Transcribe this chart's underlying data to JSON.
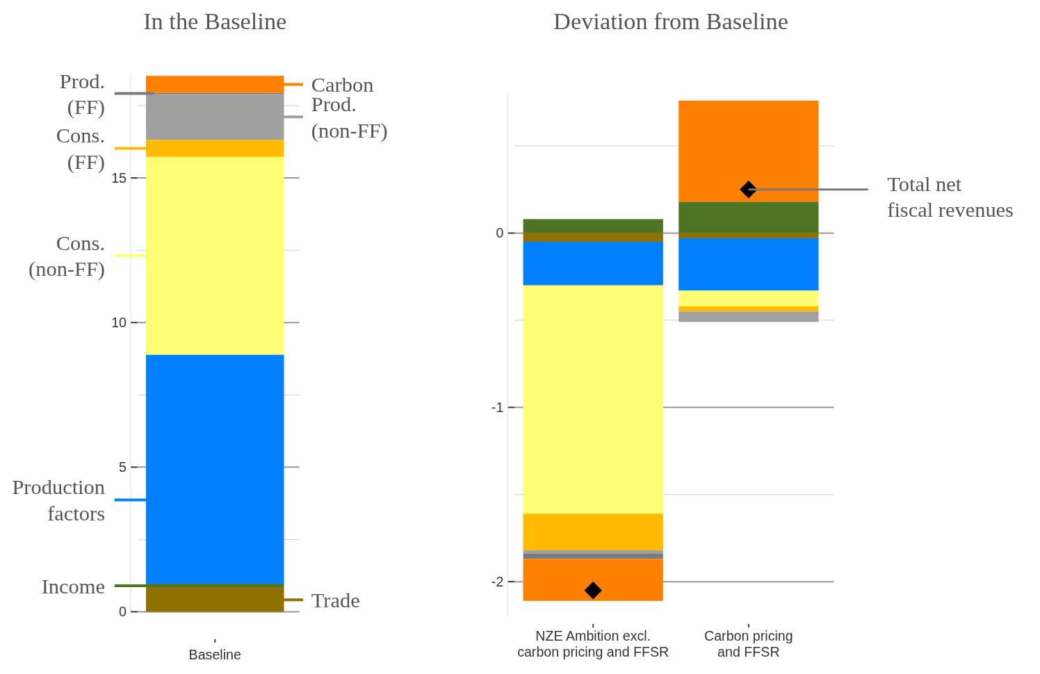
{
  "chart_data": [
    {
      "type": "bar",
      "title": "In the Baseline",
      "categories": [
        "Baseline"
      ],
      "stacked": true,
      "legend": "left",
      "ylim": [
        0,
        18.6
      ],
      "yticks": [
        0,
        {
          "value": 2.5,
          "label": null
        },
        5,
        {
          "value": 7.5,
          "label": null
        },
        10,
        {
          "value": 12.5,
          "label": null
        },
        15,
        {
          "value": 17.5,
          "label": null
        }
      ],
      "grid": true,
      "series": [
        {
          "name": "Trade",
          "color": "#8f7000",
          "values": [
            0.83
          ]
        },
        {
          "name": "Income",
          "color": "#4e7424",
          "values": [
            0.14
          ]
        },
        {
          "name": "Production factors",
          "color": "#007fff",
          "values": [
            7.92
          ]
        },
        {
          "name": "Cons. (non-FF)",
          "color": "#ffff75",
          "values": [
            6.84
          ]
        },
        {
          "name": "Cons. (FF)",
          "color": "#ffbb00",
          "values": [
            0.59
          ]
        },
        {
          "name": "Prod. (non-FF)",
          "color": "#a0a0a0",
          "values": [
            1.58
          ]
        },
        {
          "name": "Prod. (FF)",
          "color": "#7a7a7a",
          "values": [
            0.04
          ]
        },
        {
          "name": "Carbon",
          "color": "#ff7f00",
          "values": [
            0.59
          ]
        }
      ]
    },
    {
      "type": "bar",
      "title": "Deviation from Baseline",
      "categories": [
        "NZE Ambition excl. carbon pricing and FFSR",
        "Carbon pricing and FFSR"
      ],
      "stacked": true,
      "ylim": [
        -2.2,
        0.8
      ],
      "yticks": [
        -2,
        {
          "value": -1.5,
          "label": null
        },
        -1,
        {
          "value": -0.5,
          "label": null
        },
        0,
        {
          "value": 0.5,
          "label": null
        }
      ],
      "grid": true,
      "series": [
        {
          "color": "#8f7000",
          "values": [
            -0.05,
            -0.03
          ]
        },
        {
          "color": "#4e7424",
          "values": [
            0.08,
            0.18
          ]
        },
        {
          "color": "#007fff",
          "values": [
            -0.25,
            -0.3
          ]
        },
        {
          "color": "#ffff75",
          "values": [
            -1.31,
            -0.09
          ]
        },
        {
          "color": "#ffbb00",
          "values": [
            -0.21,
            -0.03
          ]
        },
        {
          "color": "#a0a0a0",
          "values": [
            -0.02,
            -0.06
          ]
        },
        {
          "color": "#7a7a7a",
          "values": [
            -0.03,
            null
          ]
        },
        {
          "color": "#ff7f00",
          "values": [
            -0.24,
            0.58
          ]
        },
        {
          "type": "scatter",
          "name": "Total net fiscal revenues",
          "color": "#000000",
          "marker": "diamond",
          "x": [
            "NZE Ambition excl. carbon pricing and FFSR",
            "Carbon pricing and FFSR"
          ],
          "values": [
            -2.05,
            0.25
          ]
        }
      ]
    }
  ]
}
